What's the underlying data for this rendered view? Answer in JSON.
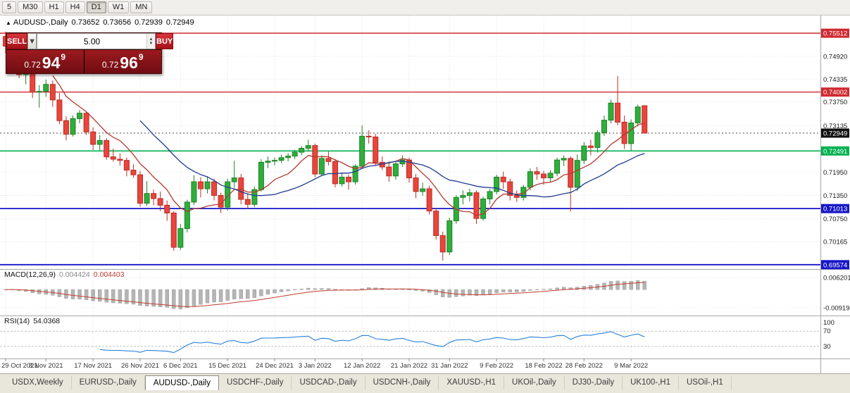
{
  "window": {
    "toolbar": {
      "timeframes": [
        "5",
        "M30",
        "H1",
        "H4",
        "D1",
        "W1",
        "MN"
      ],
      "active": "D1"
    }
  },
  "chart": {
    "header": {
      "marker": "▲",
      "symbol": "AUDUSD-,Daily",
      "open": "0.73652",
      "high": "0.73656",
      "low": "0.72939",
      "close": "0.72949"
    },
    "trade_panel": {
      "sell_label": "SELL",
      "buy_label": "BUY",
      "volume": "5.00",
      "sell_price": {
        "prefix": "0.72",
        "big": "94",
        "sup": "9"
      },
      "buy_price": {
        "prefix": "0.72",
        "big": "96",
        "sup": "9"
      }
    },
    "levels": [
      {
        "price": 0.75512,
        "label": "0.75512",
        "color": "#d02a32",
        "width": 1.4,
        "style": "solid"
      },
      {
        "price": 0.74002,
        "label": "0.74002",
        "color": "#d02a32",
        "width": 1.4,
        "style": "solid"
      },
      {
        "price": 0.72949,
        "label": "0.72949",
        "color": "#111111",
        "width": 0.8,
        "style": "dotted"
      },
      {
        "price": 0.72491,
        "label": "0.72491",
        "color": "#00b050",
        "width": 1.6,
        "style": "solid"
      },
      {
        "price": 0.71013,
        "label": "0.71013",
        "color": "#1616c8",
        "width": 1.8,
        "style": "solid"
      },
      {
        "price": 0.69574,
        "label": "0.69574",
        "color": "#1616c8",
        "width": 1.8,
        "style": "solid"
      }
    ],
    "axis_labels": [
      "0.74920",
      "0.74335",
      "0.73750",
      "0.73135",
      "0.71950",
      "0.71350",
      "0.70750",
      "0.70165"
    ],
    "macd_axis_labels": [
      "0.006201",
      "-0.00919"
    ],
    "rsi_axis_labels": [
      "100",
      "70",
      "30"
    ]
  },
  "chart_data": {
    "type": "candlestick",
    "title": "AUDUSD-,Daily",
    "price_range_hint": [
      0.6948,
      0.7593
    ],
    "x_ticks": [
      {
        "label": "29 Oct 2021",
        "i": 0
      },
      {
        "label": "8 Nov 2021",
        "i": 6
      },
      {
        "label": "17 Nov 2021",
        "i": 13
      },
      {
        "label": "26 Nov 2021",
        "i": 20
      },
      {
        "label": "6 Dec 2021",
        "i": 26
      },
      {
        "label": "15 Dec 2021",
        "i": 33
      },
      {
        "label": "24 Dec 2021",
        "i": 40
      },
      {
        "label": "3 Jan 2022",
        "i": 46
      },
      {
        "label": "12 Jan 2022",
        "i": 53
      },
      {
        "label": "21 Jan 2022",
        "i": 60
      },
      {
        "label": "31 Jan 2022",
        "i": 66
      },
      {
        "label": "9 Feb 2022",
        "i": 73
      },
      {
        "label": "18 Feb 2022",
        "i": 80
      },
      {
        "label": "28 Feb 2022",
        "i": 86
      },
      {
        "label": "9 Mar 2022",
        "i": 93
      }
    ],
    "candles": [
      [
        0.7543,
        0.7555,
        0.75,
        0.7518
      ],
      [
        0.7518,
        0.7535,
        0.7505,
        0.7525
      ],
      [
        0.7525,
        0.7535,
        0.7436,
        0.7445
      ],
      [
        0.7445,
        0.746,
        0.742,
        0.7448
      ],
      [
        0.7448,
        0.7455,
        0.7385,
        0.74
      ],
      [
        0.74,
        0.7418,
        0.736,
        0.7402
      ],
      [
        0.7402,
        0.7432,
        0.7388,
        0.742
      ],
      [
        0.742,
        0.743,
        0.7362,
        0.738
      ],
      [
        0.738,
        0.7398,
        0.7318,
        0.7327
      ],
      [
        0.7327,
        0.7338,
        0.7276,
        0.7292
      ],
      [
        0.7292,
        0.734,
        0.7286,
        0.7332
      ],
      [
        0.7332,
        0.7354,
        0.732,
        0.7346
      ],
      [
        0.7346,
        0.735,
        0.729,
        0.7298
      ],
      [
        0.7298,
        0.731,
        0.7252,
        0.7266
      ],
      [
        0.7266,
        0.729,
        0.725,
        0.7276
      ],
      [
        0.7276,
        0.7282,
        0.7227,
        0.7234
      ],
      [
        0.7234,
        0.7255,
        0.7222,
        0.7228
      ],
      [
        0.7228,
        0.7243,
        0.7212,
        0.7225
      ],
      [
        0.7225,
        0.7232,
        0.7184,
        0.72
      ],
      [
        0.72,
        0.7215,
        0.718,
        0.7188
      ],
      [
        0.7188,
        0.7198,
        0.7106,
        0.7115
      ],
      [
        0.7115,
        0.7172,
        0.7108,
        0.714
      ],
      [
        0.714,
        0.715,
        0.711,
        0.7127
      ],
      [
        0.7127,
        0.7145,
        0.7095,
        0.711
      ],
      [
        0.711,
        0.7122,
        0.707,
        0.709
      ],
      [
        0.709,
        0.7095,
        0.6993,
        0.7002
      ],
      [
        0.7002,
        0.7062,
        0.6995,
        0.705
      ],
      [
        0.705,
        0.7124,
        0.704,
        0.7118
      ],
      [
        0.7118,
        0.7187,
        0.711,
        0.717
      ],
      [
        0.717,
        0.7182,
        0.713,
        0.7152
      ],
      [
        0.7152,
        0.7184,
        0.714,
        0.717
      ],
      [
        0.717,
        0.7178,
        0.7122,
        0.7135
      ],
      [
        0.7135,
        0.7142,
        0.709,
        0.7105
      ],
      [
        0.7105,
        0.7178,
        0.7096,
        0.717
      ],
      [
        0.717,
        0.7224,
        0.7155,
        0.718
      ],
      [
        0.718,
        0.719,
        0.7112,
        0.7125
      ],
      [
        0.7125,
        0.714,
        0.71,
        0.7112
      ],
      [
        0.7112,
        0.7158,
        0.7105,
        0.715
      ],
      [
        0.715,
        0.7228,
        0.7145,
        0.722
      ],
      [
        0.722,
        0.7235,
        0.7205,
        0.7223
      ],
      [
        0.7223,
        0.7232,
        0.7212,
        0.7225
      ],
      [
        0.7225,
        0.724,
        0.7218,
        0.7232
      ],
      [
        0.7232,
        0.7244,
        0.7222,
        0.7236
      ],
      [
        0.7236,
        0.7252,
        0.7228,
        0.7246
      ],
      [
        0.7246,
        0.7262,
        0.7238,
        0.7256
      ],
      [
        0.7256,
        0.7278,
        0.7248,
        0.7263
      ],
      [
        0.7263,
        0.7268,
        0.7182,
        0.719
      ],
      [
        0.719,
        0.7238,
        0.7184,
        0.723
      ],
      [
        0.723,
        0.7248,
        0.7212,
        0.7222
      ],
      [
        0.7222,
        0.7228,
        0.7156,
        0.7165
      ],
      [
        0.7165,
        0.7194,
        0.7158,
        0.7182
      ],
      [
        0.7182,
        0.7188,
        0.715,
        0.717
      ],
      [
        0.717,
        0.7215,
        0.7163,
        0.721
      ],
      [
        0.721,
        0.7314,
        0.7205,
        0.7287
      ],
      [
        0.7287,
        0.7302,
        0.7268,
        0.7285
      ],
      [
        0.7285,
        0.7293,
        0.7212,
        0.722
      ],
      [
        0.722,
        0.7235,
        0.72,
        0.7208
      ],
      [
        0.7208,
        0.7222,
        0.717,
        0.7185
      ],
      [
        0.7185,
        0.7222,
        0.7176,
        0.7216
      ],
      [
        0.7216,
        0.7238,
        0.7208,
        0.7226
      ],
      [
        0.7226,
        0.7232,
        0.7168,
        0.718
      ],
      [
        0.718,
        0.719,
        0.7128,
        0.7145
      ],
      [
        0.7145,
        0.7168,
        0.7134,
        0.7152
      ],
      [
        0.7152,
        0.716,
        0.7086,
        0.7095
      ],
      [
        0.7095,
        0.7102,
        0.7022,
        0.7032
      ],
      [
        0.7032,
        0.7042,
        0.6968,
        0.699
      ],
      [
        0.699,
        0.7078,
        0.6982,
        0.707
      ],
      [
        0.707,
        0.7136,
        0.7062,
        0.713
      ],
      [
        0.713,
        0.7148,
        0.7112,
        0.7135
      ],
      [
        0.7135,
        0.7152,
        0.712,
        0.7142
      ],
      [
        0.7142,
        0.7148,
        0.7062,
        0.7076
      ],
      [
        0.7076,
        0.7132,
        0.707,
        0.7126
      ],
      [
        0.7126,
        0.7152,
        0.7112,
        0.7145
      ],
      [
        0.7145,
        0.7188,
        0.7138,
        0.7182
      ],
      [
        0.7182,
        0.7196,
        0.7152,
        0.717
      ],
      [
        0.717,
        0.7178,
        0.7122,
        0.7135
      ],
      [
        0.7135,
        0.7148,
        0.7118,
        0.713
      ],
      [
        0.713,
        0.7162,
        0.7122,
        0.7156
      ],
      [
        0.7156,
        0.7204,
        0.7148,
        0.7196
      ],
      [
        0.7196,
        0.7208,
        0.7175,
        0.719
      ],
      [
        0.719,
        0.7198,
        0.7162,
        0.718
      ],
      [
        0.718,
        0.72,
        0.717,
        0.7192
      ],
      [
        0.7192,
        0.7232,
        0.7184,
        0.7226
      ],
      [
        0.7226,
        0.7238,
        0.721,
        0.723
      ],
      [
        0.723,
        0.7235,
        0.7094,
        0.7156
      ],
      [
        0.7156,
        0.724,
        0.7146,
        0.7225
      ],
      [
        0.7225,
        0.7272,
        0.7216,
        0.7262
      ],
      [
        0.7262,
        0.7278,
        0.7238,
        0.7258
      ],
      [
        0.7258,
        0.7302,
        0.7245,
        0.7296
      ],
      [
        0.7296,
        0.734,
        0.7288,
        0.7328
      ],
      [
        0.7328,
        0.7381,
        0.732,
        0.7372
      ],
      [
        0.7372,
        0.7441,
        0.7315,
        0.7323
      ],
      [
        0.7323,
        0.734,
        0.7254,
        0.7268
      ],
      [
        0.7268,
        0.733,
        0.725,
        0.7321
      ],
      [
        0.7321,
        0.7368,
        0.7312,
        0.7362
      ],
      [
        0.73652,
        0.73656,
        0.72939,
        0.72949
      ]
    ],
    "overlays": [
      {
        "name": "ma-fast",
        "period": 8,
        "color": "#b03a2e"
      },
      {
        "name": "ma-slow",
        "period": 21,
        "color": "#1f3a93"
      }
    ],
    "indicators": {
      "macd": {
        "label": "MACD(12,26,9)",
        "params": [
          12,
          26,
          9
        ],
        "value_main": "0.004424",
        "value_signal": "0.004403",
        "hist_color": "#b5b5b5",
        "signal_color": "#c23b2e"
      },
      "rsi": {
        "label": "RSI(14)",
        "period": 14,
        "value": "54.0368",
        "color": "#2980d9",
        "levels": [
          70,
          30
        ]
      }
    },
    "colors": {
      "up": "#2fae3b",
      "up_stroke": "#1d8127",
      "down": "#e8453c",
      "down_stroke": "#bb2d26"
    }
  },
  "tabs": {
    "items": [
      {
        "label": "USDX,Weekly"
      },
      {
        "label": "EURUSD-,Daily"
      },
      {
        "label": "AUDUSD-,Daily",
        "active": true
      },
      {
        "label": "USDCHF-,Daily"
      },
      {
        "label": "USDCAD-,Daily"
      },
      {
        "label": "USDCNH-,Daily"
      },
      {
        "label": "XAUUSD-,H1"
      },
      {
        "label": "UKOil-,Daily"
      },
      {
        "label": "DJ30-,Daily"
      },
      {
        "label": "UK100-,H1"
      },
      {
        "label": "USOil-,H1"
      }
    ]
  }
}
